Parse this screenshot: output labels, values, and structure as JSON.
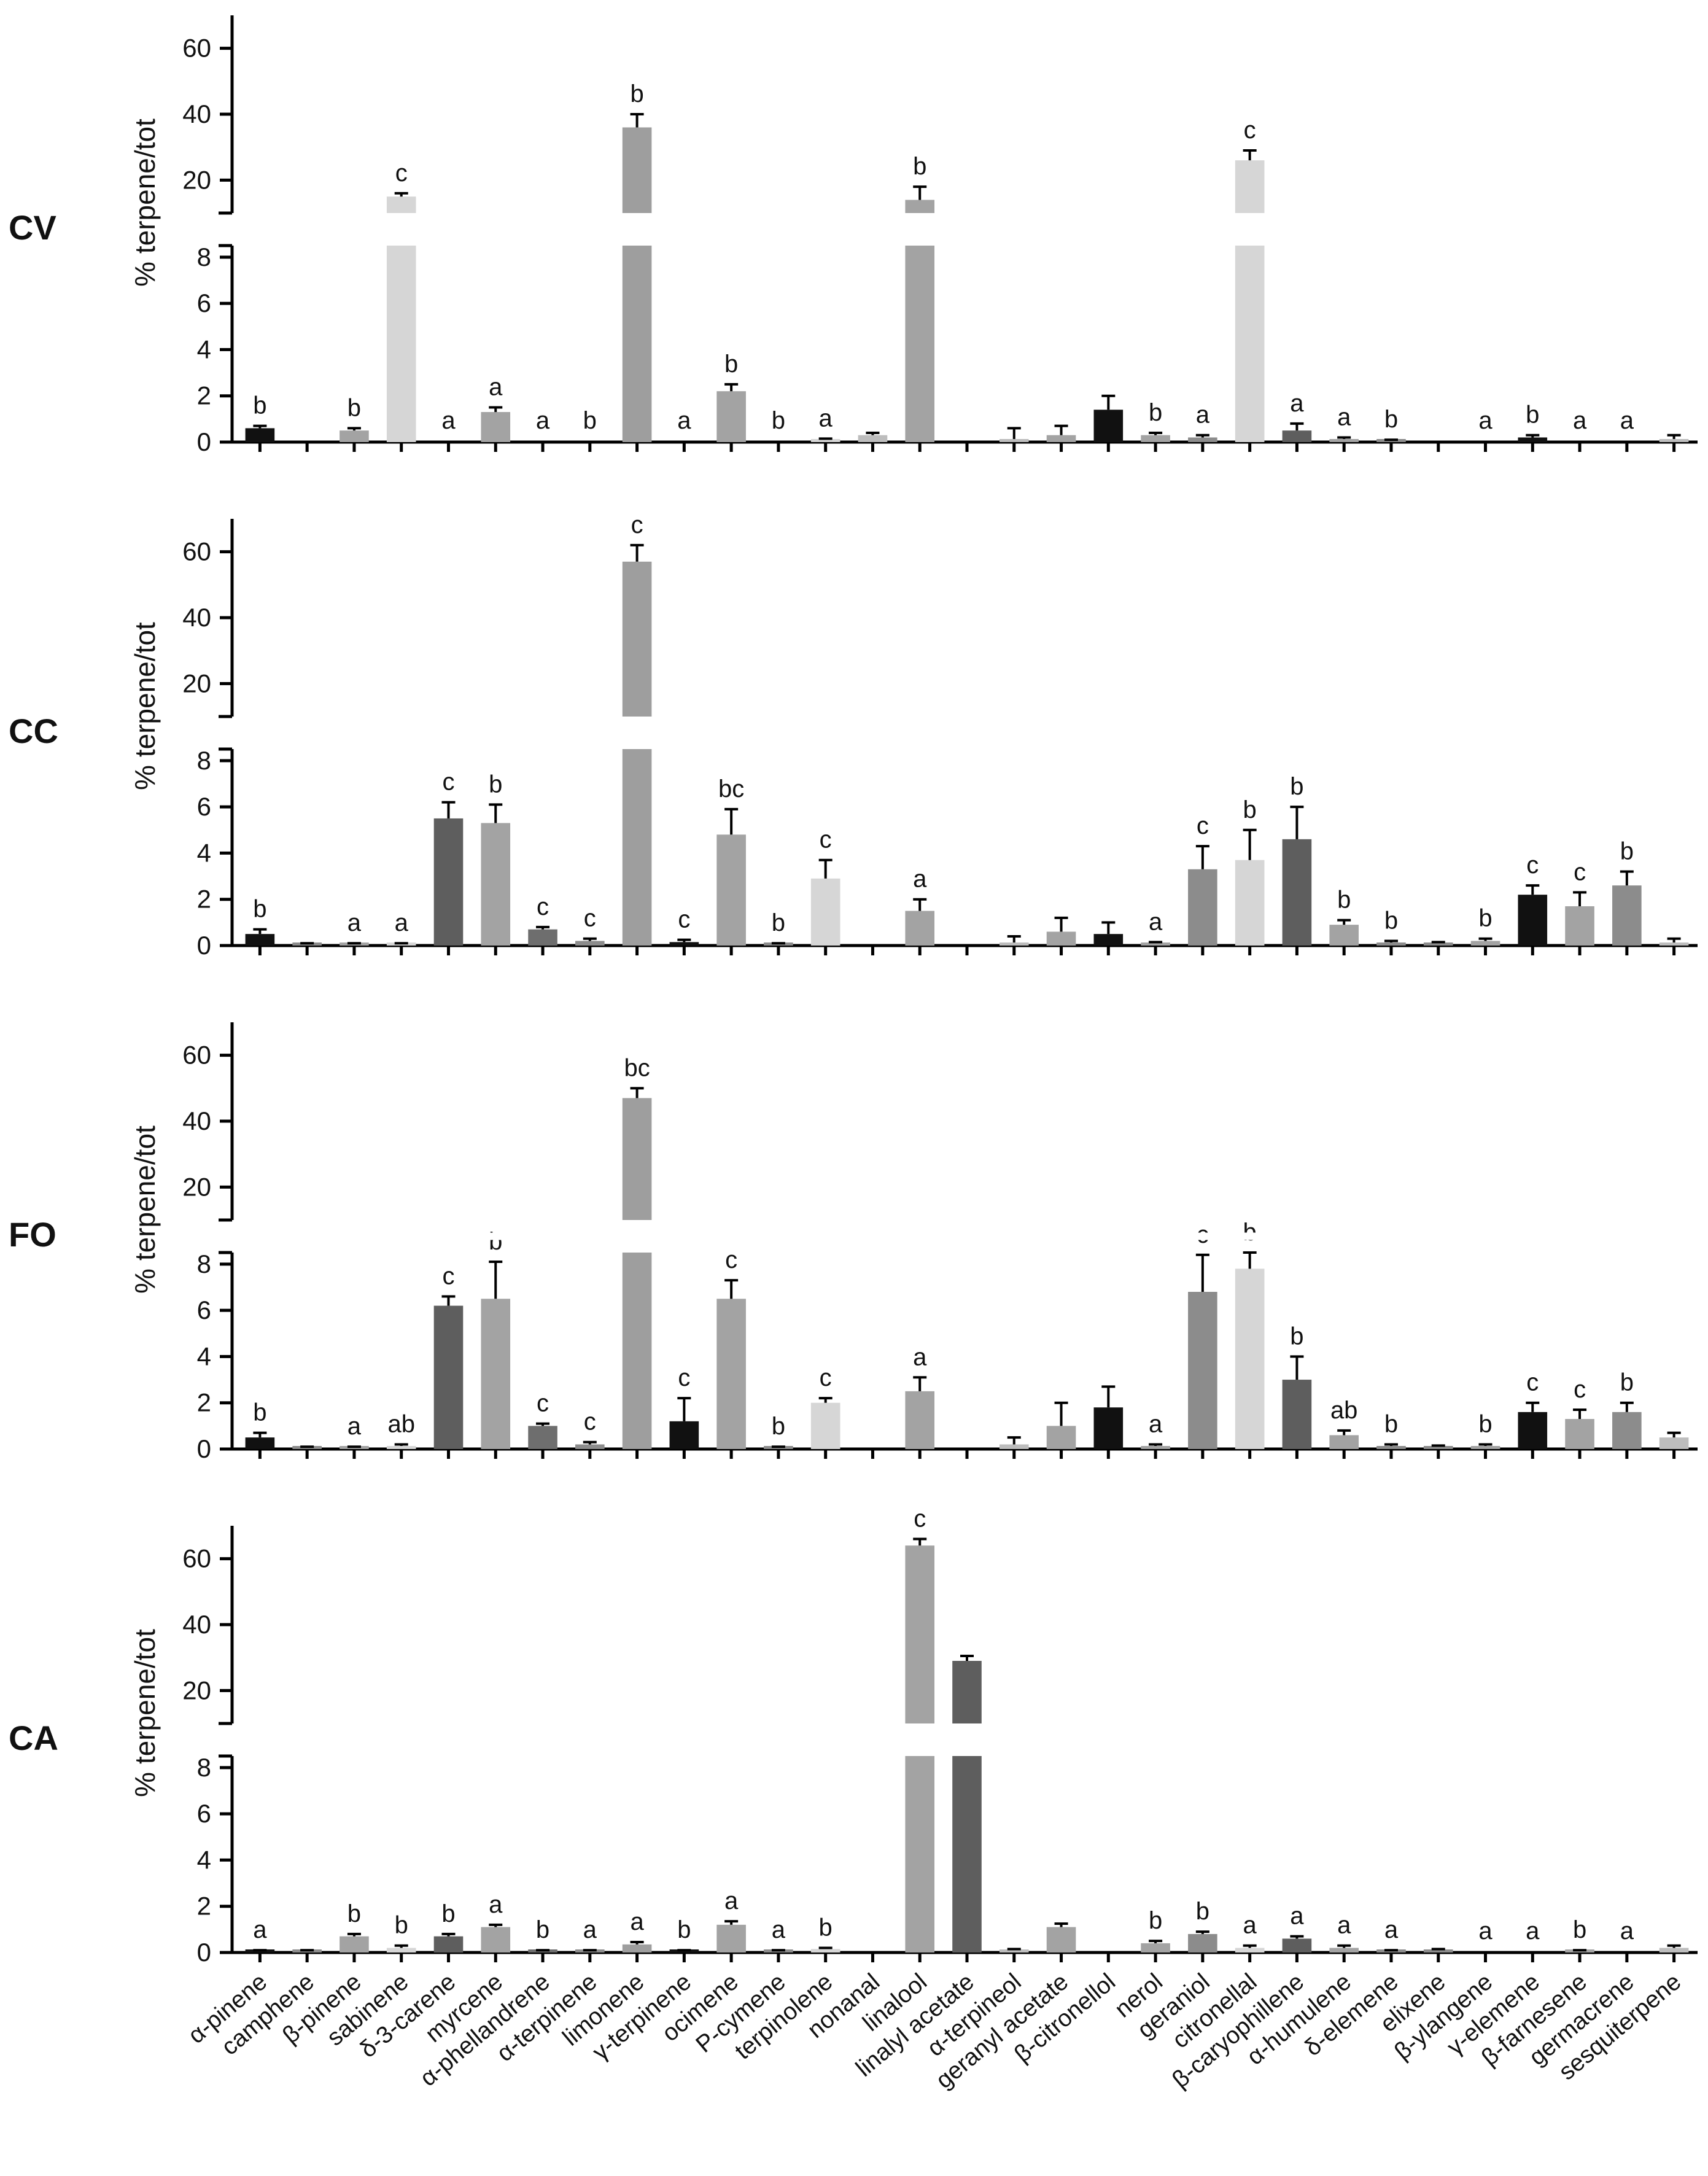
{
  "chart_data": {
    "type": "bar",
    "ylabel": "% terpene/tot",
    "ylim_lower": [
      0,
      8.5
    ],
    "ylim_upper": [
      10,
      70
    ],
    "yticks_lower": [
      "0",
      "2",
      "4",
      "6",
      "8"
    ],
    "yticks_upper": [
      "20",
      "40",
      "60"
    ],
    "categories": [
      "α-pinene",
      "camphene",
      "β-pinene",
      "sabinene",
      "δ-3-carene",
      "myrcene",
      "α-phellandrene",
      "α-terpinene",
      "limonene",
      "γ-terpinene",
      "ocimene",
      "P-cymene",
      "terpinolene",
      "nonanal",
      "linalool",
      "linalyl acetate",
      "α-terpineol",
      "geranyl acetate",
      "β-citronellol",
      "nerol",
      "geraniol",
      "citronellal",
      "β-caryophillene",
      "α-humulene",
      "δ-elemene",
      "elixene",
      "β-ylangene",
      "γ-elemene",
      "β-farnesene",
      "germacrene",
      "sesquiterpene"
    ],
    "bar_colors": [
      "#111111",
      "#8c8c8c",
      "#a3a3a3",
      "#d6d6d6",
      "#5e5e5e",
      "#a3a3a3",
      "#6e6e6e",
      "#8c8c8c",
      "#9e9e9e",
      "#111111",
      "#a3a3a3",
      "#8c8c8c",
      "#d6d6d6",
      "#bdbdbd",
      "#a3a3a3",
      "#5e5e5e",
      "#bdbdbd",
      "#a3a3a3",
      "#111111",
      "#a3a3a3",
      "#8c8c8c",
      "#d6d6d6",
      "#5e5e5e",
      "#a3a3a3",
      "#8c8c8c",
      "#8c8c8c",
      "#a3a3a3",
      "#111111",
      "#a3a3a3",
      "#8c8c8c",
      "#bdbdbd"
    ],
    "panels": [
      {
        "name": "CV",
        "values": [
          0.6,
          0,
          0.5,
          15,
          0,
          1.3,
          0,
          0,
          36,
          0,
          2.2,
          0,
          0.1,
          0.3,
          14,
          0,
          0.1,
          0.3,
          1.4,
          0.3,
          0.2,
          26,
          0.5,
          0.1,
          0.05,
          0,
          0,
          0.2,
          0,
          0,
          0.1
        ],
        "errors": [
          0.1,
          0,
          0.1,
          1,
          0,
          0.2,
          0,
          0,
          4,
          0,
          0.3,
          0,
          0.05,
          0.1,
          4,
          0,
          0.5,
          0.4,
          0.6,
          0.1,
          0.1,
          3,
          0.3,
          0.1,
          0.05,
          0,
          0,
          0.1,
          0,
          0,
          0.2
        ],
        "sig": [
          "b",
          "",
          "b",
          "c",
          "a",
          "a",
          "a",
          "b",
          "b",
          "a",
          "b",
          "b",
          "a",
          "",
          "b",
          "",
          "",
          "",
          "",
          "b",
          "a",
          "c",
          "a",
          "a",
          "b",
          "",
          "a",
          "b",
          "a",
          "a",
          ""
        ]
      },
      {
        "name": "CC",
        "values": [
          0.5,
          0.05,
          0.05,
          0.05,
          5.5,
          5.3,
          0.7,
          0.2,
          57,
          0.15,
          4.8,
          0.05,
          2.9,
          0,
          1.5,
          0,
          0.1,
          0.6,
          0.5,
          0.05,
          3.3,
          3.7,
          4.6,
          0.9,
          0.1,
          0.05,
          0.2,
          2.2,
          1.7,
          2.6,
          0.1
        ],
        "errors": [
          0.2,
          0.05,
          0.05,
          0.05,
          0.7,
          0.8,
          0.1,
          0.1,
          5,
          0.1,
          1.1,
          0.05,
          0.8,
          0,
          0.5,
          0,
          0.3,
          0.6,
          0.5,
          0.1,
          1.0,
          1.3,
          1.4,
          0.2,
          0.1,
          0.1,
          0.1,
          0.4,
          0.6,
          0.6,
          0.2
        ],
        "sig": [
          "b",
          "",
          "a",
          "a",
          "c",
          "b",
          "c",
          "c",
          "c",
          "c",
          "bc",
          "b",
          "c",
          "",
          "a",
          "",
          "",
          "",
          "",
          "a",
          "c",
          "b",
          "b",
          "b",
          "b",
          "",
          "b",
          "c",
          "c",
          "b",
          ""
        ]
      },
      {
        "name": "FO",
        "values": [
          0.5,
          0.05,
          0.05,
          0.1,
          6.2,
          6.5,
          1.0,
          0.2,
          47,
          1.2,
          6.5,
          0.05,
          2.0,
          0,
          2.5,
          0,
          0.2,
          1.0,
          1.8,
          0.1,
          6.8,
          7.8,
          3.0,
          0.6,
          0.1,
          0.05,
          0.1,
          1.6,
          1.3,
          1.6,
          0.5
        ],
        "errors": [
          0.2,
          0.05,
          0.05,
          0.1,
          0.4,
          1.6,
          0.1,
          0.1,
          3,
          1.0,
          0.8,
          0.05,
          0.2,
          0,
          0.6,
          0,
          0.3,
          1.0,
          0.9,
          0.1,
          1.6,
          0.8,
          1.0,
          0.2,
          0.1,
          0.1,
          0.1,
          0.4,
          0.4,
          0.4,
          0.2
        ],
        "sig": [
          "b",
          "",
          "a",
          "ab",
          "c",
          "b",
          "c",
          "c",
          "bc",
          "c",
          "c",
          "b",
          "c",
          "",
          "a",
          "",
          "",
          "",
          "",
          "a",
          "c",
          "b",
          "b",
          "ab",
          "b",
          "",
          "b",
          "c",
          "c",
          "b",
          ""
        ]
      },
      {
        "name": "CA",
        "values": [
          0.05,
          0.05,
          0.7,
          0.2,
          0.7,
          1.1,
          0.05,
          0.05,
          0.35,
          0.05,
          1.2,
          0.05,
          0.15,
          0,
          64,
          29,
          0.1,
          1.1,
          0,
          0.4,
          0.8,
          0.2,
          0.6,
          0.2,
          0.05,
          0.1,
          0,
          0,
          0.05,
          0,
          0.2
        ],
        "errors": [
          0.05,
          0.05,
          0.1,
          0.1,
          0.1,
          0.1,
          0.05,
          0.05,
          0.1,
          0.05,
          0.15,
          0.05,
          0.05,
          0,
          2,
          1.5,
          0.05,
          0.15,
          0,
          0.1,
          0.1,
          0.1,
          0.1,
          0.1,
          0.05,
          0.05,
          0,
          0,
          0.05,
          0,
          0.1
        ],
        "sig": [
          "a",
          "",
          "b",
          "b",
          "b",
          "a",
          "b",
          "a",
          "a",
          "b",
          "a",
          "a",
          "b",
          "",
          "c",
          "",
          "",
          "",
          "",
          "b",
          "b",
          "a",
          "a",
          "a",
          "a",
          "",
          "a",
          "a",
          "b",
          "a",
          ""
        ]
      }
    ]
  }
}
